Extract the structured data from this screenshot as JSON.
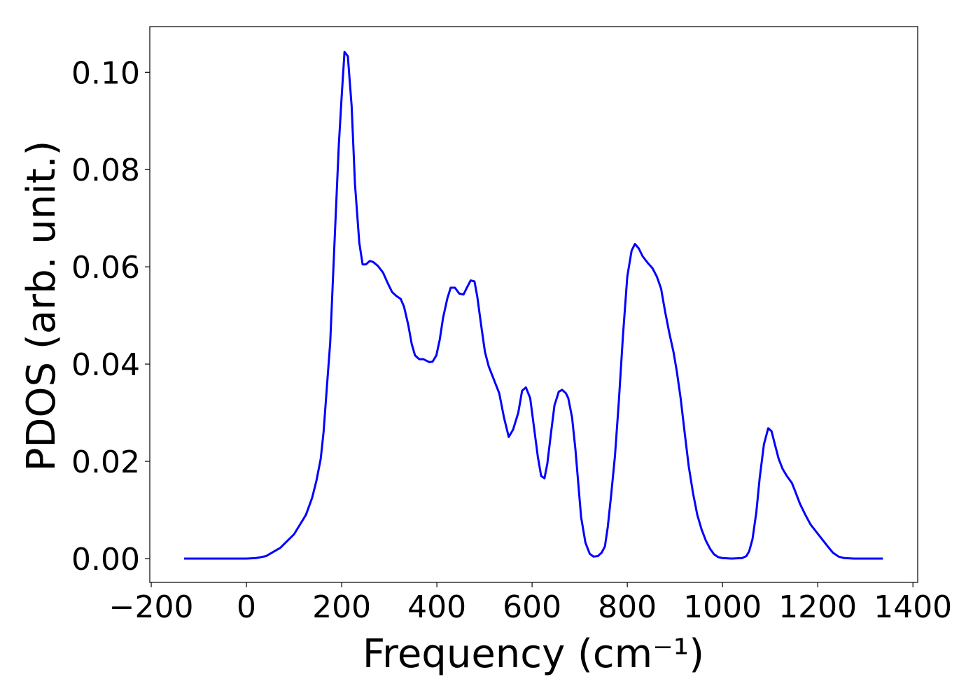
{
  "chart_data": {
    "type": "line",
    "xlabel": "Frequency (cm⁻¹)",
    "ylabel": "PDOS (arb. unit.)",
    "xlim": [
      -203,
      1410
    ],
    "ylim": [
      -0.0049,
      0.1094
    ],
    "xticks": [
      {
        "value": -200,
        "label": "−200"
      },
      0,
      200,
      400,
      600,
      800,
      1000,
      1200,
      1400
    ],
    "yticks": [
      {
        "value": 0,
        "label": "0.00"
      },
      {
        "value": 0.02,
        "label": "0.02"
      },
      {
        "value": 0.04,
        "label": "0.04"
      },
      {
        "value": 0.06,
        "label": "0.06"
      },
      {
        "value": 0.08,
        "label": "0.08"
      },
      {
        "value": 0.1,
        "label": "0.10"
      }
    ],
    "grid": false,
    "series": [
      {
        "color": "#0000ff",
        "x": [
          -131,
          -80,
          -40,
          0,
          20,
          41,
          71,
          100,
          125,
          138,
          147,
          156,
          162,
          168,
          176,
          185,
          194,
          200,
          206,
          213,
          221,
          228,
          237,
          244,
          251,
          259,
          266,
          276,
          287,
          296,
          306,
          315,
          324,
          331,
          340,
          347,
          354,
          363,
          372,
          384,
          391,
          399,
          406,
          413,
          422,
          429,
          438,
          447,
          456,
          462,
          471,
          479,
          485,
          493,
          501,
          509,
          519,
          531,
          541,
          551,
          560,
          571,
          579,
          587,
          596,
          604,
          612,
          619,
          626,
          632,
          640,
          647,
          656,
          663,
          671,
          676,
          684,
          691,
          697,
          703,
          712,
          721,
          729,
          738,
          746,
          753,
          759,
          766,
          774,
          782,
          791,
          800,
          809,
          816,
          824,
          832,
          843,
          853,
          862,
          871,
          879,
          888,
          897,
          904,
          912,
          921,
          929,
          938,
          947,
          956,
          965,
          974,
          982,
          991,
          1000,
          1019,
          1041,
          1050,
          1056,
          1063,
          1071,
          1078,
          1087,
          1096,
          1103,
          1110,
          1118,
          1126,
          1135,
          1146,
          1154,
          1163,
          1174,
          1185,
          1197,
          1209,
          1221,
          1232,
          1244,
          1256,
          1276,
          1337
        ],
        "values": [
          0,
          0,
          0,
          0,
          0.0001,
          0.0005,
          0.0022,
          0.005,
          0.009,
          0.0125,
          0.016,
          0.0205,
          0.026,
          0.034,
          0.0445,
          0.065,
          0.085,
          0.095,
          0.1042,
          0.1033,
          0.093,
          0.077,
          0.065,
          0.0605,
          0.0605,
          0.0612,
          0.061,
          0.0602,
          0.0588,
          0.0568,
          0.0548,
          0.054,
          0.0534,
          0.0518,
          0.048,
          0.0442,
          0.0418,
          0.041,
          0.041,
          0.0404,
          0.0405,
          0.0418,
          0.045,
          0.0495,
          0.0535,
          0.0557,
          0.0557,
          0.0545,
          0.0543,
          0.0555,
          0.0572,
          0.057,
          0.0538,
          0.048,
          0.0425,
          0.0395,
          0.037,
          0.034,
          0.029,
          0.025,
          0.0265,
          0.03,
          0.0345,
          0.0352,
          0.033,
          0.027,
          0.021,
          0.017,
          0.0165,
          0.0195,
          0.026,
          0.0315,
          0.0343,
          0.0347,
          0.034,
          0.033,
          0.029,
          0.0225,
          0.0155,
          0.0085,
          0.0033,
          0.001,
          0.0004,
          0.0005,
          0.0012,
          0.0025,
          0.0065,
          0.013,
          0.021,
          0.032,
          0.046,
          0.058,
          0.0633,
          0.0647,
          0.0638,
          0.0622,
          0.0608,
          0.0597,
          0.058,
          0.0555,
          0.051,
          0.0465,
          0.0425,
          0.0385,
          0.033,
          0.0255,
          0.019,
          0.0135,
          0.009,
          0.006,
          0.0037,
          0.002,
          0.0009,
          0.0003,
          0.0001,
          0,
          0.0001,
          0.0005,
          0.0015,
          0.004,
          0.0095,
          0.0165,
          0.0235,
          0.0268,
          0.0262,
          0.0235,
          0.0205,
          0.0185,
          0.017,
          0.0155,
          0.0135,
          0.0112,
          0.009,
          0.007,
          0.0055,
          0.004,
          0.0025,
          0.0012,
          0.0004,
          0.0001,
          0,
          0
        ]
      }
    ]
  }
}
